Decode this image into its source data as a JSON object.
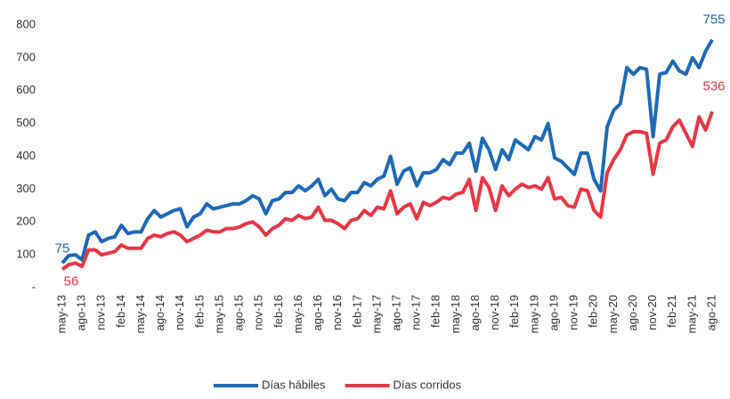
{
  "chart_data": {
    "type": "line",
    "categories": [
      "may-13",
      null,
      null,
      "ago-13",
      null,
      null,
      "nov-13",
      null,
      null,
      "feb-14",
      null,
      null,
      "may-14",
      null,
      null,
      "ago-14",
      null,
      null,
      "nov-14",
      null,
      null,
      "feb-15",
      null,
      null,
      "may-15",
      null,
      null,
      "ago-15",
      null,
      null,
      "nov-15",
      null,
      null,
      "feb-16",
      null,
      null,
      "may-16",
      null,
      null,
      "ago-16",
      null,
      null,
      "nov-16",
      null,
      null,
      "feb-17",
      null,
      null,
      "may-17",
      null,
      null,
      "ago-17",
      null,
      null,
      "nov-17",
      null,
      null,
      "feb-18",
      null,
      null,
      "may-18",
      null,
      null,
      "ago-18",
      null,
      null,
      "nov-18",
      null,
      null,
      "feb-19",
      null,
      null,
      "may-19",
      null,
      null,
      "ago-19",
      null,
      null,
      "nov-19",
      null,
      null,
      "feb-20",
      null,
      null,
      "may-20",
      null,
      null,
      "ago-20",
      null,
      null,
      "nov-20",
      null,
      null,
      "feb-21",
      null,
      null,
      "may-21",
      null,
      null,
      "ago-21"
    ],
    "series": [
      {
        "name": "Días hábiles",
        "color": "#1f6ab5",
        "values": [
          75,
          98,
          100,
          85,
          160,
          170,
          140,
          150,
          155,
          190,
          165,
          170,
          170,
          210,
          235,
          215,
          225,
          235,
          240,
          185,
          215,
          225,
          255,
          240,
          245,
          250,
          255,
          255,
          265,
          280,
          270,
          225,
          265,
          270,
          290,
          290,
          310,
          295,
          310,
          330,
          280,
          300,
          270,
          265,
          290,
          290,
          320,
          310,
          330,
          340,
          400,
          315,
          355,
          365,
          310,
          350,
          350,
          360,
          390,
          375,
          410,
          410,
          440,
          355,
          455,
          420,
          360,
          420,
          390,
          450,
          435,
          420,
          460,
          450,
          500,
          395,
          385,
          365,
          345,
          410,
          410,
          330,
          295,
          490,
          540,
          560,
          670,
          650,
          670,
          665,
          460,
          650,
          655,
          690,
          660,
          650,
          700,
          670,
          720,
          755
        ]
      },
      {
        "name": "Días corridos",
        "color": "#e63846",
        "values": [
          56,
          70,
          75,
          65,
          115,
          115,
          100,
          105,
          110,
          130,
          120,
          120,
          120,
          150,
          160,
          155,
          165,
          170,
          160,
          140,
          150,
          160,
          175,
          170,
          170,
          180,
          180,
          185,
          195,
          200,
          185,
          160,
          180,
          190,
          210,
          205,
          220,
          210,
          215,
          245,
          205,
          205,
          195,
          180,
          205,
          210,
          235,
          220,
          245,
          240,
          295,
          225,
          245,
          255,
          210,
          260,
          250,
          260,
          275,
          270,
          285,
          290,
          330,
          235,
          335,
          305,
          235,
          310,
          280,
          300,
          315,
          305,
          310,
          300,
          335,
          270,
          275,
          250,
          245,
          300,
          295,
          235,
          215,
          350,
          390,
          420,
          465,
          475,
          475,
          470,
          345,
          440,
          450,
          490,
          510,
          470,
          430,
          520,
          480,
          536
        ]
      }
    ],
    "ylim": [
      0,
      800
    ],
    "yticks": [
      {
        "value": 0,
        "label": "-"
      },
      100,
      200,
      300,
      400,
      500,
      600,
      700,
      800
    ]
  }
}
